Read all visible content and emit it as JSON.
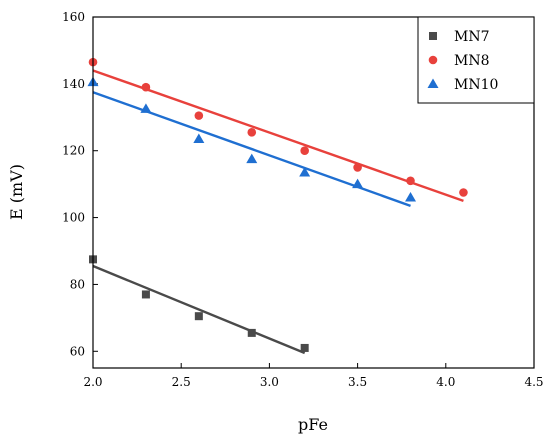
{
  "chart_data": {
    "type": "scatter",
    "xlabel": "pFe",
    "ylabel": "E (mV)",
    "xlim": [
      2.0,
      4.5
    ],
    "ylim": [
      55,
      160
    ],
    "x_ticks": [
      "2.0",
      "2.5",
      "3.0",
      "3.5",
      "4.0",
      "4.5"
    ],
    "y_ticks": [
      "60",
      "80",
      "100",
      "120",
      "140",
      "160"
    ],
    "legend_position": "top-right",
    "series": [
      {
        "name": "MN7",
        "marker": "square",
        "color": "#4a4a4a",
        "points": [
          [
            2.0,
            87.5
          ],
          [
            2.3,
            77
          ],
          [
            2.6,
            70.5
          ],
          [
            2.9,
            65.5
          ],
          [
            3.2,
            61
          ]
        ],
        "fit": [
          [
            2.0,
            85.5
          ],
          [
            3.2,
            59.5
          ]
        ]
      },
      {
        "name": "MN8",
        "marker": "circle",
        "color": "#e8413c",
        "points": [
          [
            2.0,
            146.5
          ],
          [
            2.3,
            139
          ],
          [
            2.6,
            130.5
          ],
          [
            2.9,
            125.5
          ],
          [
            3.2,
            120
          ],
          [
            3.5,
            115
          ],
          [
            3.8,
            111
          ],
          [
            4.1,
            107.5
          ]
        ],
        "fit": [
          [
            2.0,
            144
          ],
          [
            4.1,
            105
          ]
        ]
      },
      {
        "name": "MN10",
        "marker": "triangle",
        "color": "#1f6fd1",
        "points": [
          [
            2.0,
            140.5
          ],
          [
            2.3,
            132.5
          ],
          [
            2.6,
            123.5
          ],
          [
            2.9,
            117.5
          ],
          [
            3.2,
            113.5
          ],
          [
            3.5,
            110
          ],
          [
            3.8,
            106
          ]
        ],
        "fit": [
          [
            2.0,
            137.5
          ],
          [
            3.8,
            103.5
          ]
        ]
      }
    ]
  }
}
